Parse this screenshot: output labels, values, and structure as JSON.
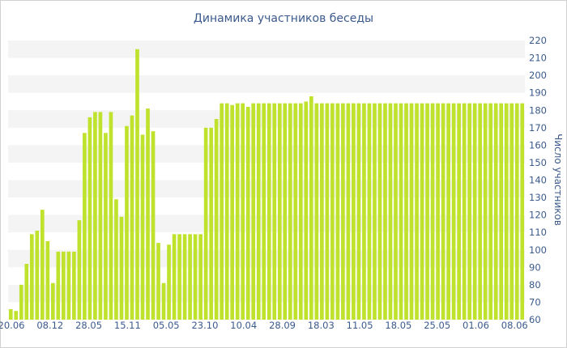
{
  "chart_data": {
    "type": "bar",
    "title": "Динамика участников беседы",
    "xlabel": "",
    "ylabel": "Число участников",
    "ylim": [
      60,
      220
    ],
    "yticks": [
      60,
      70,
      80,
      90,
      100,
      110,
      120,
      130,
      140,
      150,
      160,
      170,
      180,
      190,
      200,
      210,
      220
    ],
    "x_tick_labels": [
      "20.06",
      "08.12",
      "28.05",
      "15.11",
      "05.05",
      "23.10",
      "10.04",
      "28.09",
      "18.03",
      "11.05",
      "18.05",
      "25.05",
      "01.06",
      "08.06"
    ],
    "grid": "horizontal bands",
    "legend": "none",
    "values": [
      66,
      65,
      80,
      92,
      109,
      111,
      123,
      105,
      81,
      99,
      99,
      99,
      99,
      117,
      167,
      176,
      179,
      179,
      167,
      179,
      129,
      119,
      171,
      177,
      215,
      166,
      181,
      168,
      104,
      81,
      103,
      109,
      109,
      109,
      109,
      109,
      109,
      170,
      170,
      175,
      184,
      184,
      183,
      184,
      184,
      182,
      184,
      184,
      184,
      184,
      184,
      184,
      184,
      184,
      184,
      184,
      185,
      188,
      184,
      184,
      184,
      184,
      184,
      184,
      184,
      184,
      184,
      184,
      184,
      184,
      184,
      184,
      184,
      184,
      184,
      184,
      184,
      184,
      184,
      184,
      184,
      184,
      184,
      184,
      184,
      184,
      184,
      184,
      184,
      184,
      184,
      184,
      184,
      184,
      184,
      184,
      184,
      184
    ],
    "colors": {
      "bar": "#bfe22d",
      "band": "#f4f4f4",
      "text": "#3b5a8c"
    }
  }
}
